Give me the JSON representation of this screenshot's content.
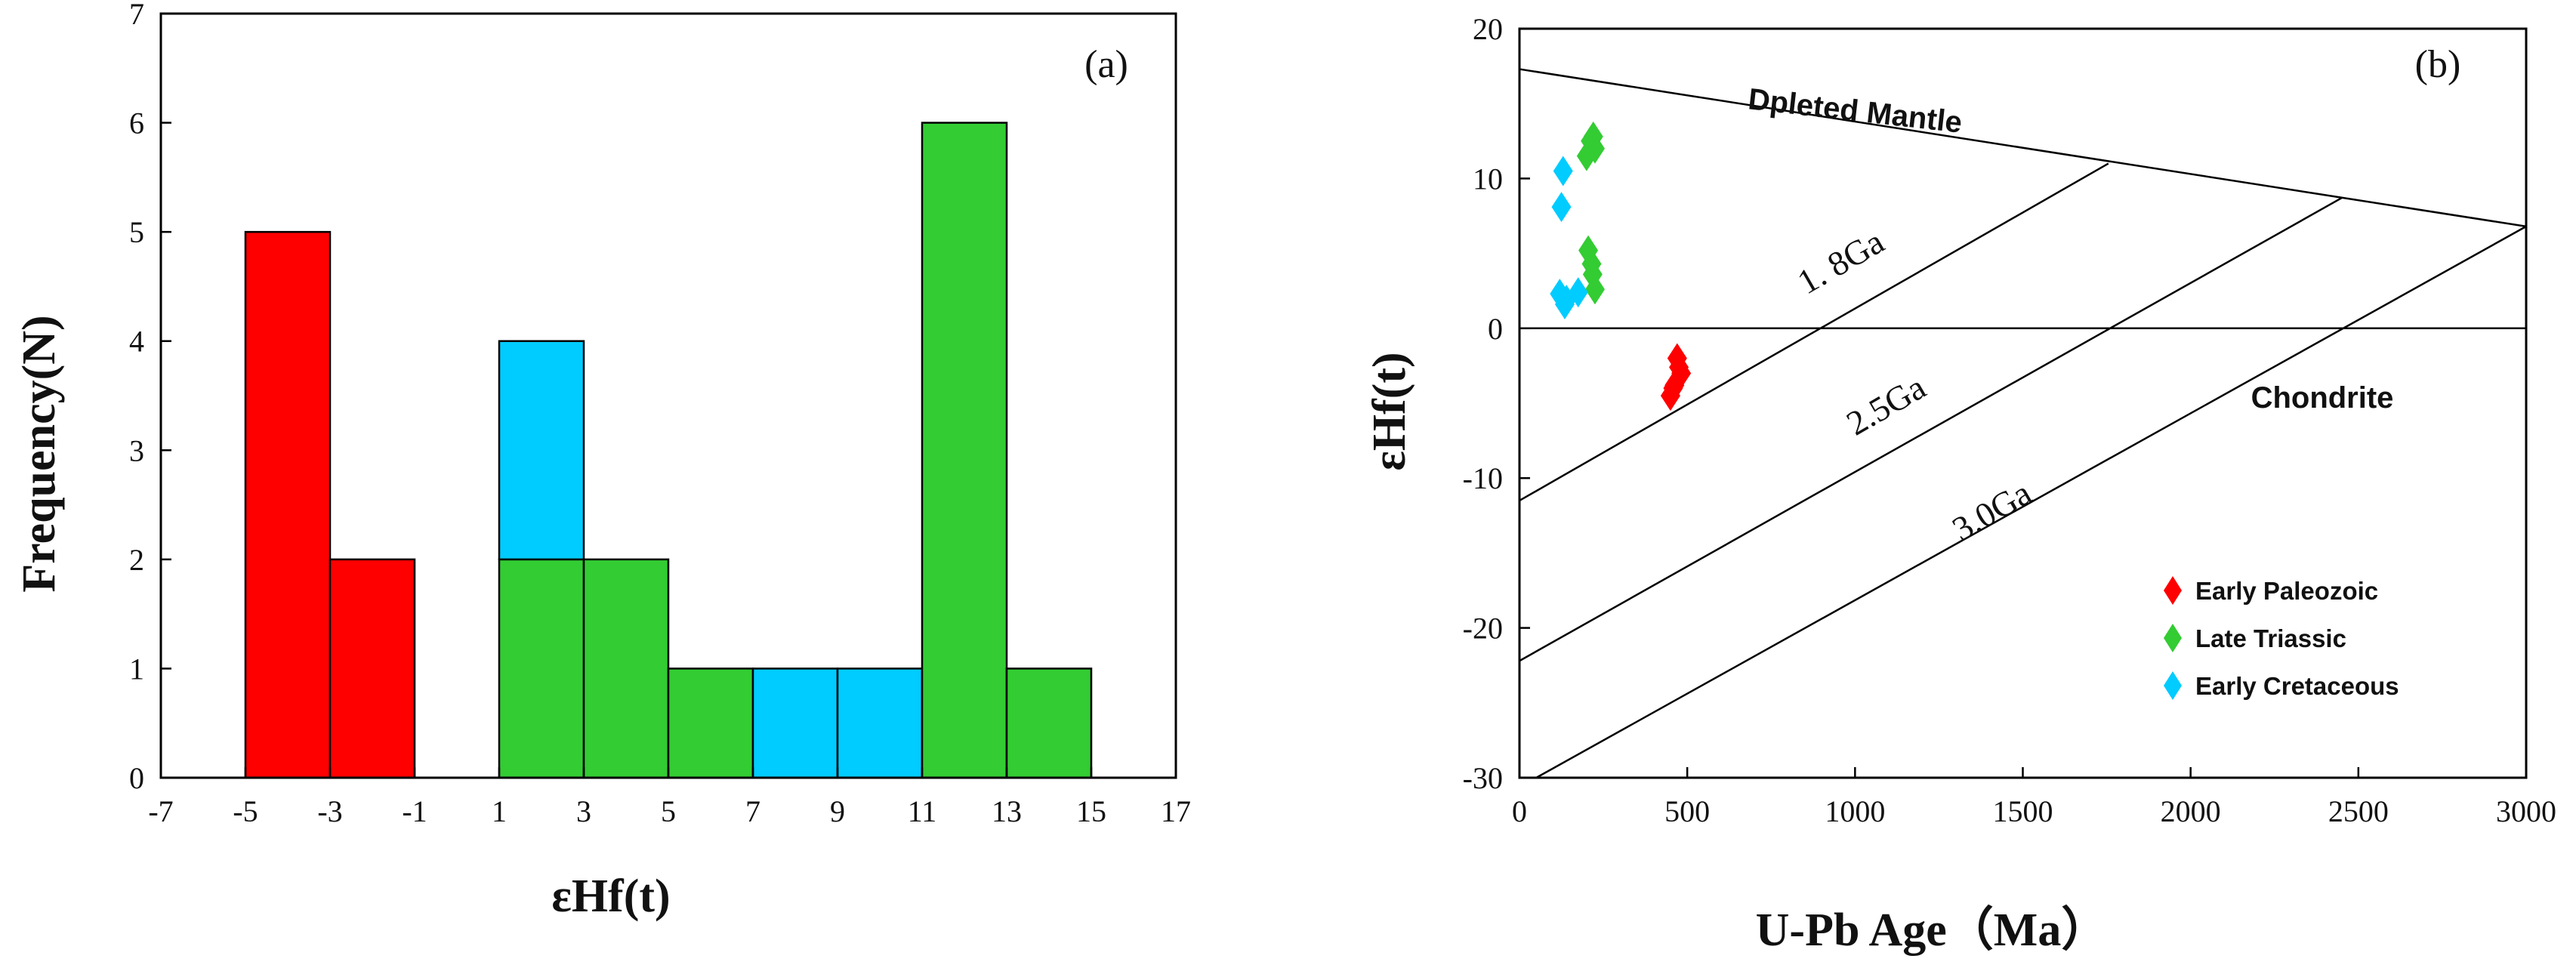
{
  "chart_data": [
    {
      "type": "histogram",
      "panel_label": "(a)",
      "xlabel": "εHf(t)",
      "ylabel": "Frequency(N)",
      "xlim": [
        -7,
        17
      ],
      "ylim": [
        0,
        7
      ],
      "xticks": [
        -7,
        -5,
        -3,
        -1,
        1,
        3,
        5,
        7,
        9,
        11,
        13,
        15,
        17
      ],
      "yticks": [
        0,
        1,
        2,
        3,
        4,
        5,
        6,
        7
      ],
      "bars": [
        {
          "x0": -5,
          "x1": -3,
          "y0": 0,
          "y1": 5,
          "color": "#ff0000"
        },
        {
          "x0": -3,
          "x1": -1,
          "y0": 0,
          "y1": 2,
          "color": "#ff0000"
        },
        {
          "x0": 1,
          "x1": 3,
          "y0": 0,
          "y1": 2,
          "color": "#33cc33"
        },
        {
          "x0": 1,
          "x1": 3,
          "y0": 2,
          "y1": 4,
          "color": "#00ccff"
        },
        {
          "x0": 3,
          "x1": 5,
          "y0": 0,
          "y1": 2,
          "color": "#33cc33"
        },
        {
          "x0": 5,
          "x1": 7,
          "y0": 0,
          "y1": 1,
          "color": "#33cc33"
        },
        {
          "x0": 7,
          "x1": 9,
          "y0": 0,
          "y1": 1,
          "color": "#00ccff"
        },
        {
          "x0": 9,
          "x1": 11,
          "y0": 0,
          "y1": 1,
          "color": "#00ccff"
        },
        {
          "x0": 11,
          "x1": 13,
          "y0": 0,
          "y1": 6,
          "color": "#33cc33"
        },
        {
          "x0": 13,
          "x1": 15,
          "y0": 0,
          "y1": 1,
          "color": "#33cc33"
        }
      ]
    },
    {
      "type": "scatter",
      "panel_label": "(b)",
      "xlabel": "U-Pb Age（Ma）",
      "ylabel": "εHf(t)",
      "xlim": [
        0,
        3000
      ],
      "ylim": [
        -30,
        20
      ],
      "xticks": [
        0,
        500,
        1000,
        1500,
        2000,
        2500,
        3000
      ],
      "yticks": [
        -30,
        -20,
        -10,
        0,
        10,
        20
      ],
      "reference_lines": [
        {
          "name": "Dpleted Mantle",
          "points": [
            [
              0,
              17.3
            ],
            [
              3000,
              6.8
            ]
          ]
        },
        {
          "name": "Chondrite",
          "points": [
            [
              0,
              0
            ],
            [
              3000,
              0
            ]
          ]
        },
        {
          "name": "1. 8Ga",
          "points": [
            [
              0,
              -11.5
            ],
            [
              1755,
              11.0
            ]
          ]
        },
        {
          "name": "2.5Ga",
          "points": [
            [
              0,
              -22.2
            ],
            [
              2450,
              8.7
            ]
          ]
        },
        {
          "name": "3.0Ga",
          "points": [
            [
              50,
              -30
            ],
            [
              3000,
              6.8
            ]
          ]
        }
      ],
      "annotations": {
        "depleted_mantle": "Dpleted Mantle",
        "chondrite": "Chondrite",
        "ga18": "1. 8Ga",
        "ga25": "2.5Ga",
        "ga30": "3.0Ga"
      },
      "series": [
        {
          "name": "Early Paleozoic",
          "color": "#ff0000",
          "points": [
            [
              450,
              -4.5
            ],
            [
              462,
              -3.8
            ],
            [
              470,
              -2.0
            ],
            [
              475,
              -2.6
            ],
            [
              482,
              -3.0
            ],
            [
              458,
              -4.0
            ]
          ]
        },
        {
          "name": "Late Triassic",
          "color": "#33cc33",
          "points": [
            [
              200,
              11.5
            ],
            [
              212,
              12.5
            ],
            [
              220,
              12.8
            ],
            [
              225,
              12.0
            ],
            [
              205,
              5.2
            ],
            [
              215,
              4.3
            ],
            [
              218,
              3.6
            ],
            [
              225,
              2.6
            ]
          ]
        },
        {
          "name": "Early Cretaceous",
          "color": "#00ccff",
          "points": [
            [
              130,
              10.5
            ],
            [
              125,
              8.1
            ],
            [
              120,
              2.3
            ],
            [
              135,
              1.6
            ],
            [
              140,
              1.9
            ],
            [
              175,
              2.4
            ]
          ]
        }
      ]
    }
  ]
}
